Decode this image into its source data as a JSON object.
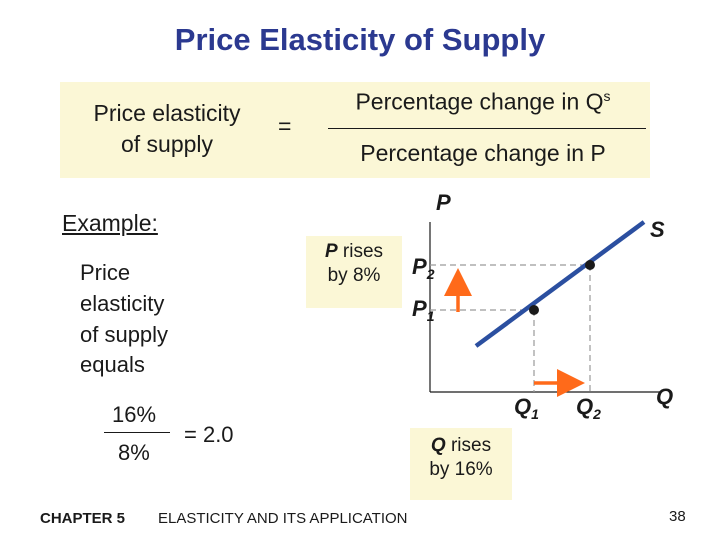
{
  "title": "Price Elasticity of Supply",
  "formula": {
    "lhs_line1": "Price elasticity",
    "lhs_line2": "of supply",
    "equals": "=",
    "numerator": "Percentage change in Q",
    "numerator_sup": "s",
    "denominator": "Percentage change in P"
  },
  "example": {
    "label": "Example:",
    "line1": "Price",
    "line2": "elasticity",
    "line3": "of supply",
    "line4": "equals",
    "frac_num": "16%",
    "frac_den": "8%",
    "result": "= 2.0"
  },
  "graph": {
    "axis_y": "P",
    "axis_x": "Q",
    "curve_label": "S",
    "p1": "P",
    "p1_sub": "1",
    "p2": "P",
    "p2_sub": "2",
    "q1": "Q",
    "q1_sub": "1",
    "q2": "Q",
    "q2_sub": "2",
    "p_callout_italic": "P",
    "p_callout_rest": " rises",
    "p_callout_line2": "by 8%",
    "q_callout_italic": "Q",
    "q_callout_rest": " rises",
    "q_callout_line2": "by 16%",
    "colors": {
      "curve": "#2b4fa0",
      "arrow": "#ff6a1a",
      "dash": "#9a9a9a"
    }
  },
  "footer": {
    "chapter": "CHAPTER 5",
    "subject": "ELASTICITY AND ITS APPLICATION",
    "page": "38"
  }
}
